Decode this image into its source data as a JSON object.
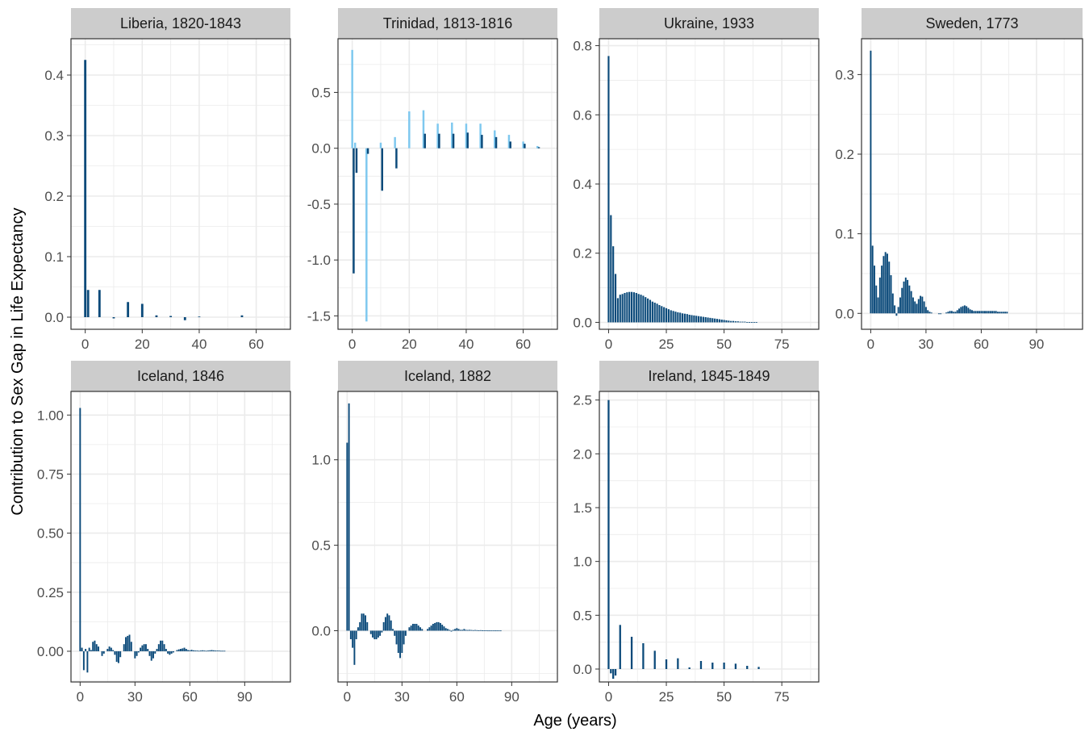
{
  "figure": {
    "ylabel": "Contribution to Sex Gap in Life Expectancy",
    "xlabel": "Age (years)"
  },
  "colors": {
    "bar_dark": "#0b4a7a",
    "bar_light": "#7ec8ef",
    "strip_bg": "#cccccc",
    "grid": "#ebebeb",
    "border": "#333333"
  },
  "chart_data": [
    {
      "type": "bar",
      "title": "Liberia, 1820-1843",
      "xlim": [
        -5,
        72
      ],
      "ylim": [
        -0.02,
        0.46
      ],
      "xticks": [
        0,
        20,
        40,
        60
      ],
      "yticks": [
        0.0,
        0.1,
        0.2,
        0.3,
        0.4
      ],
      "ytick_labels": [
        "0.0",
        "0.1",
        "0.2",
        "0.3",
        "0.4"
      ],
      "series": [
        {
          "color": "dark",
          "bar_width": 0.8,
          "x": [
            0,
            1,
            5,
            10,
            15,
            20,
            25,
            30,
            35,
            40,
            45,
            50,
            55,
            60
          ],
          "values": [
            0.425,
            0.045,
            0.045,
            -0.002,
            0.025,
            0.022,
            0.003,
            0.002,
            -0.005,
            0.001,
            0.0,
            0.0,
            0.003,
            0.0
          ]
        }
      ]
    },
    {
      "type": "bar",
      "title": "Trinidad, 1813-1816",
      "xlim": [
        -5,
        72
      ],
      "ylim": [
        -1.62,
        0.98
      ],
      "xticks": [
        0,
        20,
        40,
        60
      ],
      "yticks": [
        0.5,
        0.0,
        -0.5,
        -1.0,
        -1.5
      ],
      "ytick_labels": [
        "0.5",
        "0.0",
        "-0.5",
        "-1.0",
        "-1.5"
      ],
      "series": [
        {
          "color": "light",
          "bar_width": 0.7,
          "x": [
            0,
            1,
            5,
            10,
            15,
            20,
            25,
            30,
            35,
            40,
            45,
            50,
            55,
            60,
            65
          ],
          "values": [
            0.88,
            0.05,
            -1.55,
            0.05,
            0.1,
            0.33,
            0.34,
            0.22,
            0.23,
            0.22,
            0.22,
            0.16,
            0.12,
            0.06,
            0.02
          ]
        },
        {
          "color": "dark",
          "bar_width": 0.7,
          "x": [
            0.5,
            1.5,
            5.5,
            10.5,
            15.5,
            20.5,
            25.5,
            30.5,
            35.5,
            40.5,
            45.5,
            50.5,
            55.5,
            60.5,
            65.5
          ],
          "values": [
            -1.12,
            -0.22,
            -0.05,
            -0.38,
            -0.18,
            0.0,
            0.13,
            0.13,
            0.13,
            0.14,
            0.12,
            0.1,
            0.06,
            0.04,
            0.01
          ]
        }
      ]
    },
    {
      "type": "bar",
      "title": "Ukraine, 1933",
      "xlim": [
        -4,
        91
      ],
      "ylim": [
        -0.02,
        0.82
      ],
      "xticks": [
        0,
        25,
        50,
        75
      ],
      "yticks": [
        0.0,
        0.2,
        0.4,
        0.6,
        0.8
      ],
      "ytick_labels": [
        "0.0",
        "0.2",
        "0.4",
        "0.6",
        "0.8"
      ],
      "series": [
        {
          "color": "dark",
          "bar_width": 0.75,
          "x": [
            0,
            1,
            2,
            3,
            4,
            5,
            6,
            7,
            8,
            9,
            10,
            11,
            12,
            13,
            14,
            15,
            16,
            17,
            18,
            19,
            20,
            21,
            22,
            23,
            24,
            25,
            26,
            27,
            28,
            29,
            30,
            31,
            32,
            33,
            34,
            35,
            36,
            37,
            38,
            39,
            40,
            41,
            42,
            43,
            44,
            45,
            46,
            47,
            48,
            49,
            50,
            51,
            52,
            53,
            54,
            55,
            56,
            57,
            58,
            59,
            60,
            61,
            62,
            63,
            64
          ],
          "values": [
            0.77,
            0.31,
            0.22,
            0.14,
            0.07,
            0.08,
            0.082,
            0.085,
            0.087,
            0.088,
            0.088,
            0.087,
            0.085,
            0.082,
            0.08,
            0.077,
            0.073,
            0.069,
            0.065,
            0.06,
            0.057,
            0.054,
            0.05,
            0.047,
            0.044,
            0.041,
            0.038,
            0.035,
            0.033,
            0.031,
            0.029,
            0.028,
            0.026,
            0.025,
            0.024,
            0.022,
            0.021,
            0.02,
            0.019,
            0.018,
            0.017,
            0.016,
            0.015,
            0.014,
            0.013,
            0.012,
            0.011,
            0.01,
            0.009,
            0.008,
            0.007,
            0.006,
            0.005,
            0.004,
            0.004,
            0.003,
            0.003,
            0.002,
            0.002,
            0.002,
            0.001,
            0.001,
            0.001,
            0.001,
            0.001
          ]
        }
      ]
    },
    {
      "type": "bar",
      "title": "Sweden, 1773",
      "xlim": [
        -5,
        115
      ],
      "ylim": [
        -0.02,
        0.345
      ],
      "xticks": [
        0,
        30,
        60,
        90
      ],
      "yticks": [
        0.0,
        0.1,
        0.2,
        0.3
      ],
      "ytick_labels": [
        "0.0",
        "0.1",
        "0.2",
        "0.3"
      ],
      "series": [
        {
          "color": "dark",
          "bar_width": 0.85,
          "x": [
            0,
            1,
            2,
            3,
            4,
            5,
            6,
            7,
            8,
            9,
            10,
            11,
            12,
            13,
            14,
            15,
            16,
            17,
            18,
            19,
            20,
            21,
            22,
            23,
            24,
            25,
            26,
            27,
            28,
            29,
            30,
            31,
            32,
            33,
            34,
            35,
            36,
            37,
            38,
            39,
            40,
            41,
            42,
            43,
            44,
            45,
            46,
            47,
            48,
            49,
            50,
            51,
            52,
            53,
            54,
            55,
            56,
            57,
            58,
            59,
            60,
            61,
            62,
            63,
            64,
            65,
            66,
            67,
            68,
            69,
            70,
            71,
            72,
            73,
            74
          ],
          "values": [
            0.33,
            0.085,
            0.06,
            0.035,
            0.02,
            0.045,
            0.06,
            0.072,
            0.077,
            0.075,
            0.065,
            0.048,
            0.025,
            0.01,
            -0.003,
            0.008,
            0.02,
            0.032,
            0.04,
            0.045,
            0.042,
            0.035,
            0.028,
            0.02,
            0.015,
            0.012,
            0.018,
            0.022,
            0.021,
            0.015,
            0.008,
            0.004,
            0.002,
            0.001,
            0.0,
            0.0,
            0.0,
            -0.001,
            -0.001,
            0.0,
            0.0,
            0.001,
            0.002,
            0.003,
            0.003,
            0.002,
            0.002,
            0.004,
            0.006,
            0.008,
            0.009,
            0.01,
            0.009,
            0.007,
            0.005,
            0.004,
            0.003,
            0.003,
            0.003,
            0.003,
            0.003,
            0.003,
            0.003,
            0.003,
            0.003,
            0.003,
            0.003,
            0.003,
            0.003,
            0.002,
            0.002,
            0.002,
            0.002,
            0.002,
            0.002
          ]
        }
      ]
    },
    {
      "type": "bar",
      "title": "Iceland, 1846",
      "xlim": [
        -5,
        115
      ],
      "ylim": [
        -0.13,
        1.1
      ],
      "xticks": [
        0,
        30,
        60,
        90
      ],
      "yticks": [
        0.0,
        0.25,
        0.5,
        0.75,
        1.0
      ],
      "ytick_labels": [
        "0.00",
        "0.25",
        "0.50",
        "0.75",
        "1.00"
      ],
      "series": [
        {
          "color": "dark",
          "bar_width": 0.85,
          "x": [
            0,
            1,
            2,
            3,
            4,
            5,
            6,
            7,
            8,
            9,
            10,
            11,
            12,
            13,
            14,
            15,
            16,
            17,
            18,
            19,
            20,
            21,
            22,
            23,
            24,
            25,
            26,
            27,
            28,
            29,
            30,
            31,
            32,
            33,
            34,
            35,
            36,
            37,
            38,
            39,
            40,
            41,
            42,
            43,
            44,
            45,
            46,
            47,
            48,
            49,
            50,
            51,
            52,
            53,
            54,
            55,
            56,
            57,
            58,
            59,
            60,
            61,
            62,
            63,
            64,
            65,
            66,
            67,
            68,
            69,
            70,
            71,
            72,
            73,
            74,
            75,
            76,
            77,
            78,
            79
          ],
          "values": [
            1.03,
            0.015,
            -0.08,
            0.01,
            -0.09,
            0.015,
            0.005,
            0.04,
            0.045,
            0.03,
            0.02,
            0.0,
            -0.02,
            -0.01,
            0.0,
            0.01,
            0.02,
            0.015,
            0.005,
            -0.015,
            -0.045,
            -0.05,
            -0.025,
            0.0,
            0.03,
            0.06,
            0.065,
            0.07,
            0.04,
            0.0,
            -0.03,
            -0.02,
            -0.005,
            0.015,
            0.025,
            0.03,
            0.03,
            0.01,
            -0.02,
            -0.04,
            -0.03,
            -0.01,
            0.01,
            0.03,
            0.045,
            0.045,
            0.03,
            0.01,
            -0.01,
            -0.015,
            -0.01,
            -0.005,
            0.0,
            0.005,
            0.008,
            0.01,
            0.012,
            0.015,
            0.01,
            0.005,
            0.004,
            0.006,
            0.004,
            0.003,
            0.003,
            0.002,
            0.003,
            0.004,
            0.003,
            0.002,
            0.003,
            0.004,
            0.005,
            0.004,
            0.003,
            0.003,
            0.003,
            0.002,
            0.002,
            0.002
          ]
        }
      ]
    },
    {
      "type": "bar",
      "title": "Iceland, 1882",
      "xlim": [
        -5,
        115
      ],
      "ylim": [
        -0.3,
        1.4
      ],
      "xticks": [
        0,
        30,
        60,
        90
      ],
      "yticks": [
        0.0,
        0.5,
        1.0
      ],
      "ytick_labels": [
        "0.0",
        "0.5",
        "1.0"
      ],
      "series": [
        {
          "color": "dark",
          "bar_width": 0.85,
          "x": [
            0,
            1,
            2,
            3,
            4,
            5,
            6,
            7,
            8,
            9,
            10,
            11,
            12,
            13,
            14,
            15,
            16,
            17,
            18,
            19,
            20,
            21,
            22,
            23,
            24,
            25,
            26,
            27,
            28,
            29,
            30,
            31,
            32,
            33,
            34,
            35,
            36,
            37,
            38,
            39,
            40,
            41,
            42,
            43,
            44,
            45,
            46,
            47,
            48,
            49,
            50,
            51,
            52,
            53,
            54,
            55,
            56,
            57,
            58,
            59,
            60,
            61,
            62,
            63,
            64,
            65,
            66,
            67,
            68,
            69,
            70,
            71,
            72,
            73,
            74,
            75,
            76,
            77,
            78,
            79,
            80,
            81,
            82,
            83,
            84
          ],
          "values": [
            1.1,
            1.33,
            -0.05,
            -0.1,
            -0.2,
            -0.05,
            0.02,
            0.05,
            0.1,
            0.1,
            0.09,
            0.05,
            0.0,
            -0.02,
            -0.04,
            -0.05,
            -0.05,
            -0.04,
            -0.03,
            -0.01,
            0.05,
            0.08,
            0.1,
            0.09,
            0.06,
            0.01,
            -0.03,
            -0.08,
            -0.13,
            -0.16,
            -0.13,
            -0.08,
            -0.03,
            0.0,
            0.02,
            0.03,
            0.04,
            0.04,
            0.04,
            0.03,
            0.02,
            0.01,
            0.0,
            0.0,
            0.01,
            0.02,
            0.03,
            0.04,
            0.045,
            0.05,
            0.05,
            0.045,
            0.035,
            0.025,
            0.015,
            0.01,
            0.005,
            -0.005,
            0.005,
            0.01,
            0.015,
            0.01,
            0.005,
            0.005,
            0.01,
            0.005,
            0.004,
            0.005,
            0.004,
            0.003,
            0.004,
            0.003,
            0.002,
            0.003,
            0.002,
            0.002,
            0.002,
            0.001,
            0.001,
            0.001,
            0.001,
            0.001,
            0.001,
            0.001,
            0.001
          ]
        }
      ]
    },
    {
      "type": "bar",
      "title": "Ireland, 1845-1849",
      "xlim": [
        -4,
        91
      ],
      "ylim": [
        -0.12,
        2.58
      ],
      "xticks": [
        0,
        25,
        50,
        75
      ],
      "yticks": [
        0.0,
        0.5,
        1.0,
        1.5,
        2.0,
        2.5
      ],
      "ytick_labels": [
        "0.0",
        "0.5",
        "1.0",
        "1.5",
        "2.0",
        "2.5"
      ],
      "series": [
        {
          "color": "dark",
          "bar_width": 0.8,
          "x": [
            0,
            1,
            2,
            3,
            5,
            10,
            15,
            20,
            25,
            30,
            35,
            40,
            45,
            50,
            55,
            60,
            65
          ],
          "values": [
            2.5,
            -0.04,
            -0.09,
            -0.06,
            0.41,
            0.3,
            0.24,
            0.17,
            0.09,
            0.1,
            0.015,
            0.075,
            0.06,
            0.06,
            0.05,
            0.03,
            0.02
          ]
        }
      ]
    }
  ]
}
